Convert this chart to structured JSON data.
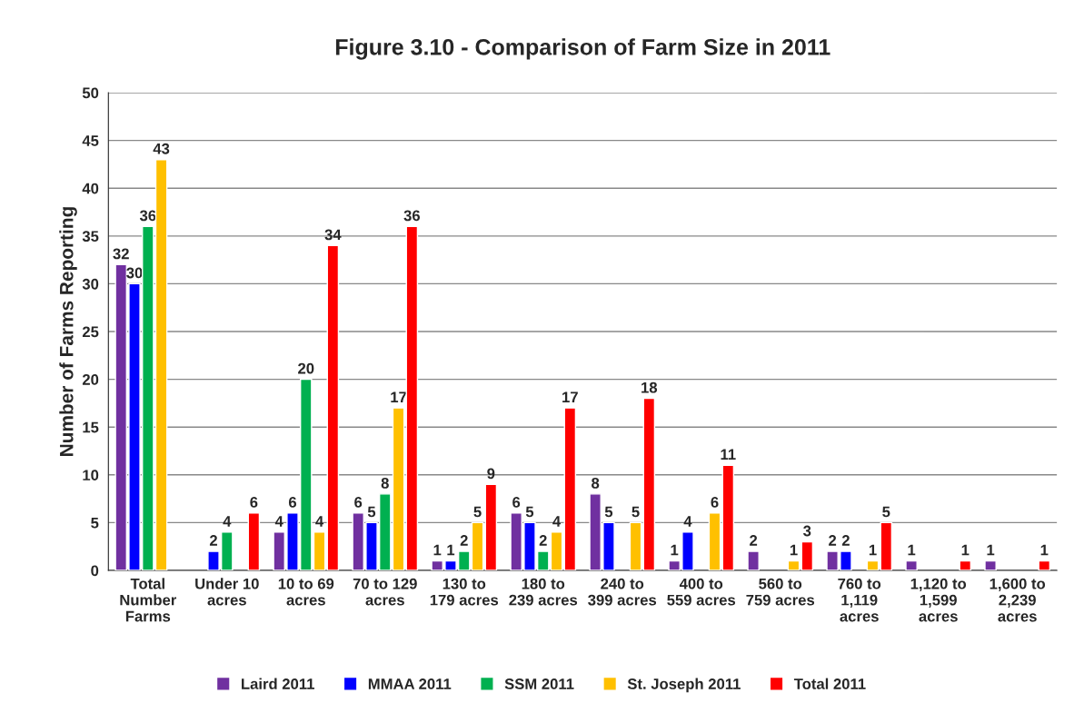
{
  "chart_data": {
    "type": "bar",
    "title": "Figure 3.10 - Comparison of Farm Size in 2011",
    "ylabel": "Number of Farms Reporting",
    "categories": [
      "Total\nNumber\nFarms",
      "Under 10\nacres",
      "10 to 69\nacres",
      "70 to 129\nacres",
      "130 to\n179 acres",
      "180 to\n239 acres",
      "240 to\n399 acres",
      "400 to\n559 acres",
      "560 to\n759 acres",
      "760 to\n1,119\nacres",
      "1,120 to\n1,599\nacres",
      "1,600 to\n2,239\nacres"
    ],
    "series": [
      {
        "name": "Laird 2011",
        "color": "#7030a0",
        "values": [
          32,
          null,
          4,
          6,
          1,
          6,
          8,
          1,
          2,
          2,
          1,
          1
        ]
      },
      {
        "name": "MMAA 2011",
        "color": "#0000ff",
        "values": [
          30,
          2,
          6,
          5,
          1,
          5,
          5,
          4,
          null,
          2,
          null,
          null
        ]
      },
      {
        "name": "SSM 2011",
        "color": "#00b050",
        "values": [
          36,
          4,
          20,
          8,
          2,
          2,
          null,
          null,
          null,
          null,
          null,
          null
        ]
      },
      {
        "name": "St. Joseph 2011",
        "color": "#ffc000",
        "values": [
          43,
          null,
          4,
          17,
          5,
          4,
          5,
          6,
          1,
          1,
          null,
          null
        ]
      },
      {
        "name": "Total 2011",
        "color": "#ff0000",
        "values": [
          null,
          6,
          34,
          36,
          9,
          17,
          18,
          11,
          3,
          5,
          1,
          1
        ]
      }
    ],
    "ylim": [
      0,
      50
    ],
    "yticks": [
      0,
      5,
      10,
      15,
      20,
      25,
      30,
      35,
      40,
      45,
      50
    ],
    "grid": "y",
    "legend": "bottom",
    "data_labels": true
  }
}
